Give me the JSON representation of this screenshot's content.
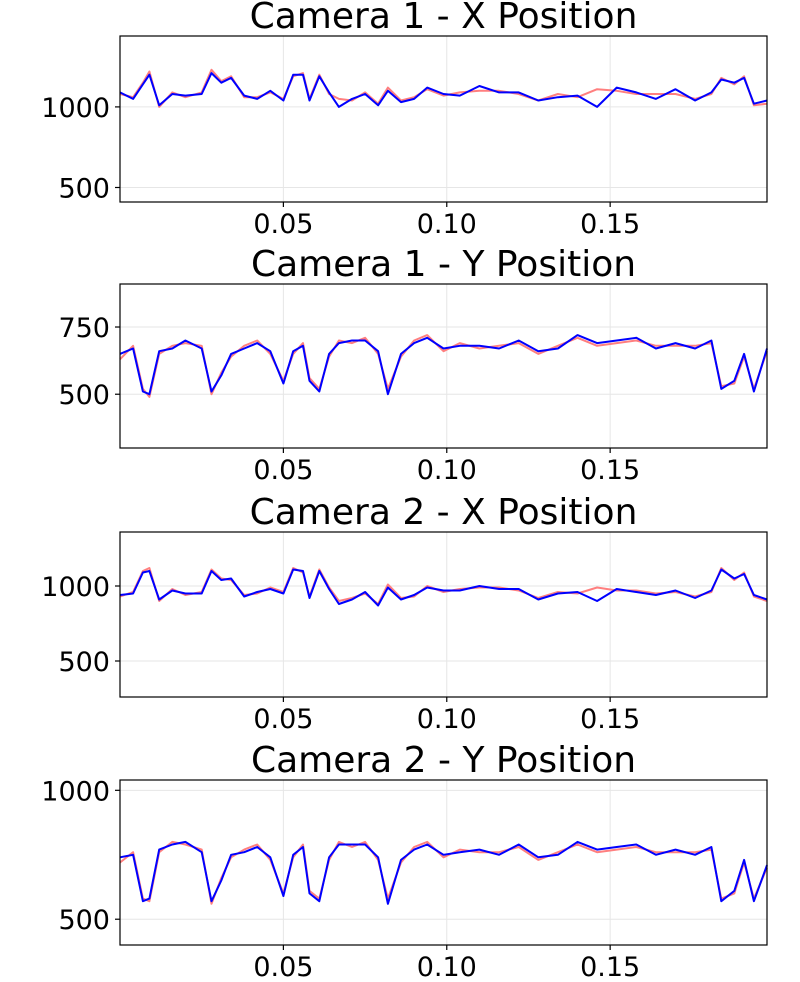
{
  "chart_data": [
    {
      "type": "line",
      "title": "Camera 1 - X Position",
      "xlim": [
        0.0,
        0.198
      ],
      "ylim": [
        410,
        1440
      ],
      "xticks": [
        0.05,
        0.1,
        0.15
      ],
      "xtick_labels": [
        "0.05",
        "0.10",
        "0.15"
      ],
      "yticks": [
        500,
        1000
      ],
      "ytick_labels": [
        "500",
        "1000"
      ],
      "grid": true,
      "series": [
        {
          "color": "#ff7f7f",
          "x": [
            0.0,
            0.004,
            0.007,
            0.009,
            0.012,
            0.016,
            0.02,
            0.025,
            0.028,
            0.031,
            0.034,
            0.038,
            0.042,
            0.046,
            0.05,
            0.053,
            0.056,
            0.058,
            0.061,
            0.064,
            0.067,
            0.071,
            0.075,
            0.079,
            0.082,
            0.086,
            0.09,
            0.094,
            0.099,
            0.104,
            0.11,
            0.116,
            0.122,
            0.128,
            0.134,
            0.14,
            0.146,
            0.152,
            0.158,
            0.164,
            0.17,
            0.176,
            0.181,
            0.184,
            0.188,
            0.191,
            0.194,
            0.198
          ],
          "y": [
            1080,
            1060,
            1150,
            1220,
            1000,
            1090,
            1060,
            1090,
            1230,
            1160,
            1190,
            1060,
            1060,
            1090,
            1050,
            1190,
            1210,
            1050,
            1200,
            1080,
            1050,
            1040,
            1090,
            1020,
            1120,
            1040,
            1060,
            1110,
            1070,
            1090,
            1100,
            1100,
            1080,
            1040,
            1080,
            1060,
            1110,
            1100,
            1080,
            1080,
            1080,
            1050,
            1080,
            1180,
            1140,
            1190,
            1010,
            1020
          ]
        },
        {
          "color": "#0000ff",
          "x": [
            0.0,
            0.004,
            0.007,
            0.009,
            0.012,
            0.016,
            0.02,
            0.025,
            0.028,
            0.031,
            0.034,
            0.038,
            0.042,
            0.046,
            0.05,
            0.053,
            0.056,
            0.058,
            0.061,
            0.064,
            0.067,
            0.071,
            0.075,
            0.079,
            0.082,
            0.086,
            0.09,
            0.094,
            0.099,
            0.104,
            0.11,
            0.116,
            0.122,
            0.128,
            0.134,
            0.14,
            0.146,
            0.152,
            0.158,
            0.164,
            0.17,
            0.176,
            0.181,
            0.184,
            0.188,
            0.191,
            0.194,
            0.198
          ],
          "y": [
            1090,
            1050,
            1140,
            1200,
            1010,
            1080,
            1070,
            1080,
            1210,
            1150,
            1180,
            1070,
            1050,
            1100,
            1040,
            1200,
            1200,
            1040,
            1190,
            1090,
            1000,
            1050,
            1080,
            1010,
            1100,
            1030,
            1050,
            1120,
            1080,
            1070,
            1130,
            1090,
            1090,
            1040,
            1060,
            1070,
            1000,
            1120,
            1090,
            1050,
            1110,
            1040,
            1090,
            1170,
            1150,
            1180,
            1020,
            1040
          ]
        }
      ]
    },
    {
      "type": "line",
      "title": "Camera 1 - Y Position",
      "xlim": [
        0.0,
        0.198
      ],
      "ylim": [
        300,
        910
      ],
      "xticks": [
        0.05,
        0.1,
        0.15
      ],
      "xtick_labels": [
        "0.05",
        "0.10",
        "0.15"
      ],
      "yticks": [
        500,
        750
      ],
      "ytick_labels": [
        "500",
        "750"
      ],
      "grid": true,
      "series": [
        {
          "color": "#ff7f7f",
          "x": [
            0.0,
            0.004,
            0.007,
            0.009,
            0.012,
            0.016,
            0.02,
            0.025,
            0.028,
            0.031,
            0.034,
            0.038,
            0.042,
            0.046,
            0.05,
            0.053,
            0.056,
            0.058,
            0.061,
            0.064,
            0.067,
            0.071,
            0.075,
            0.079,
            0.082,
            0.086,
            0.09,
            0.094,
            0.099,
            0.104,
            0.11,
            0.116,
            0.122,
            0.128,
            0.134,
            0.14,
            0.146,
            0.152,
            0.158,
            0.164,
            0.17,
            0.176,
            0.181,
            0.184,
            0.188,
            0.191,
            0.194,
            0.198
          ],
          "y": [
            630,
            680,
            520,
            490,
            650,
            680,
            690,
            680,
            500,
            580,
            640,
            680,
            700,
            650,
            550,
            650,
            690,
            560,
            520,
            640,
            700,
            690,
            710,
            650,
            520,
            640,
            700,
            720,
            660,
            690,
            670,
            680,
            690,
            650,
            680,
            710,
            680,
            690,
            700,
            680,
            680,
            680,
            690,
            530,
            540,
            640,
            520,
            660
          ]
        },
        {
          "color": "#0000ff",
          "x": [
            0.0,
            0.004,
            0.007,
            0.009,
            0.012,
            0.016,
            0.02,
            0.025,
            0.028,
            0.031,
            0.034,
            0.038,
            0.042,
            0.046,
            0.05,
            0.053,
            0.056,
            0.058,
            0.061,
            0.064,
            0.067,
            0.071,
            0.075,
            0.079,
            0.082,
            0.086,
            0.09,
            0.094,
            0.099,
            0.104,
            0.11,
            0.116,
            0.122,
            0.128,
            0.134,
            0.14,
            0.146,
            0.152,
            0.158,
            0.164,
            0.17,
            0.176,
            0.181,
            0.184,
            0.188,
            0.191,
            0.194,
            0.198
          ],
          "y": [
            650,
            670,
            510,
            500,
            660,
            670,
            700,
            670,
            510,
            570,
            650,
            670,
            690,
            660,
            540,
            660,
            680,
            550,
            510,
            650,
            690,
            700,
            700,
            660,
            500,
            650,
            690,
            710,
            670,
            680,
            680,
            670,
            700,
            660,
            670,
            720,
            690,
            700,
            710,
            670,
            690,
            670,
            700,
            520,
            550,
            650,
            510,
            670
          ]
        }
      ]
    },
    {
      "type": "line",
      "title": "Camera 2 - X Position",
      "xlim": [
        0.0,
        0.198
      ],
      "ylim": [
        260,
        1360
      ],
      "xticks": [
        0.05,
        0.1,
        0.15
      ],
      "xtick_labels": [
        "0.05",
        "0.10",
        "0.15"
      ],
      "yticks": [
        500,
        1000
      ],
      "ytick_labels": [
        "500",
        "1000"
      ],
      "grid": true,
      "series": [
        {
          "color": "#ff7f7f",
          "x": [
            0.0,
            0.004,
            0.007,
            0.009,
            0.012,
            0.016,
            0.02,
            0.025,
            0.028,
            0.031,
            0.034,
            0.038,
            0.042,
            0.046,
            0.05,
            0.053,
            0.056,
            0.058,
            0.061,
            0.064,
            0.067,
            0.071,
            0.075,
            0.079,
            0.082,
            0.086,
            0.09,
            0.094,
            0.099,
            0.104,
            0.11,
            0.116,
            0.122,
            0.128,
            0.134,
            0.14,
            0.146,
            0.152,
            0.158,
            0.164,
            0.17,
            0.176,
            0.181,
            0.184,
            0.188,
            0.191,
            0.194,
            0.198
          ],
          "y": [
            930,
            960,
            1100,
            1120,
            900,
            980,
            940,
            960,
            1110,
            1050,
            1040,
            940,
            950,
            990,
            960,
            1120,
            1090,
            930,
            1110,
            990,
            900,
            920,
            950,
            880,
            1010,
            920,
            930,
            1000,
            960,
            980,
            990,
            990,
            970,
            920,
            960,
            950,
            990,
            970,
            970,
            950,
            960,
            930,
            960,
            1120,
            1040,
            1090,
            930,
            900
          ]
        },
        {
          "color": "#0000ff",
          "x": [
            0.0,
            0.004,
            0.007,
            0.009,
            0.012,
            0.016,
            0.02,
            0.025,
            0.028,
            0.031,
            0.034,
            0.038,
            0.042,
            0.046,
            0.05,
            0.053,
            0.056,
            0.058,
            0.061,
            0.064,
            0.067,
            0.071,
            0.075,
            0.079,
            0.082,
            0.086,
            0.09,
            0.094,
            0.099,
            0.104,
            0.11,
            0.116,
            0.122,
            0.128,
            0.134,
            0.14,
            0.146,
            0.152,
            0.158,
            0.164,
            0.17,
            0.176,
            0.181,
            0.184,
            0.188,
            0.191,
            0.194,
            0.198
          ],
          "y": [
            940,
            950,
            1090,
            1100,
            910,
            970,
            950,
            950,
            1100,
            1040,
            1050,
            930,
            960,
            980,
            950,
            1110,
            1100,
            920,
            1100,
            980,
            880,
            910,
            960,
            870,
            990,
            910,
            940,
            990,
            970,
            970,
            1000,
            980,
            980,
            910,
            950,
            960,
            900,
            980,
            960,
            940,
            970,
            920,
            970,
            1110,
            1050,
            1080,
            940,
            910
          ]
        }
      ]
    },
    {
      "type": "line",
      "title": "Camera 2 - Y Position",
      "xlim": [
        0.0,
        0.198
      ],
      "ylim": [
        400,
        1040
      ],
      "xticks": [
        0.05,
        0.1,
        0.15
      ],
      "xtick_labels": [
        "0.05",
        "0.10",
        "0.15"
      ],
      "yticks": [
        500,
        1000
      ],
      "ytick_labels": [
        "500",
        "1000"
      ],
      "grid": true,
      "series": [
        {
          "color": "#ff7f7f",
          "x": [
            0.0,
            0.004,
            0.007,
            0.009,
            0.012,
            0.016,
            0.02,
            0.025,
            0.028,
            0.031,
            0.034,
            0.038,
            0.042,
            0.046,
            0.05,
            0.053,
            0.056,
            0.058,
            0.061,
            0.064,
            0.067,
            0.071,
            0.075,
            0.079,
            0.082,
            0.086,
            0.09,
            0.094,
            0.099,
            0.104,
            0.11,
            0.116,
            0.122,
            0.128,
            0.134,
            0.14,
            0.146,
            0.152,
            0.158,
            0.164,
            0.17,
            0.176,
            0.181,
            0.184,
            0.188,
            0.191,
            0.194,
            0.198
          ],
          "y": [
            720,
            760,
            580,
            570,
            760,
            800,
            790,
            770,
            560,
            660,
            740,
            770,
            790,
            730,
            600,
            740,
            790,
            610,
            580,
            730,
            800,
            780,
            800,
            730,
            580,
            720,
            780,
            800,
            740,
            770,
            760,
            760,
            780,
            730,
            760,
            790,
            760,
            770,
            780,
            760,
            760,
            760,
            770,
            580,
            600,
            720,
            580,
            700
          ]
        },
        {
          "color": "#0000ff",
          "x": [
            0.0,
            0.004,
            0.007,
            0.009,
            0.012,
            0.016,
            0.02,
            0.025,
            0.028,
            0.031,
            0.034,
            0.038,
            0.042,
            0.046,
            0.05,
            0.053,
            0.056,
            0.058,
            0.061,
            0.064,
            0.067,
            0.071,
            0.075,
            0.079,
            0.082,
            0.086,
            0.09,
            0.094,
            0.099,
            0.104,
            0.11,
            0.116,
            0.122,
            0.128,
            0.134,
            0.14,
            0.146,
            0.152,
            0.158,
            0.164,
            0.17,
            0.176,
            0.181,
            0.184,
            0.188,
            0.191,
            0.194,
            0.198
          ],
          "y": [
            740,
            750,
            570,
            580,
            770,
            790,
            800,
            760,
            570,
            650,
            750,
            760,
            780,
            740,
            590,
            750,
            780,
            600,
            570,
            740,
            790,
            790,
            790,
            740,
            560,
            730,
            770,
            790,
            750,
            760,
            770,
            750,
            790,
            740,
            750,
            800,
            770,
            780,
            790,
            750,
            770,
            750,
            780,
            570,
            610,
            730,
            570,
            710
          ]
        }
      ]
    }
  ]
}
